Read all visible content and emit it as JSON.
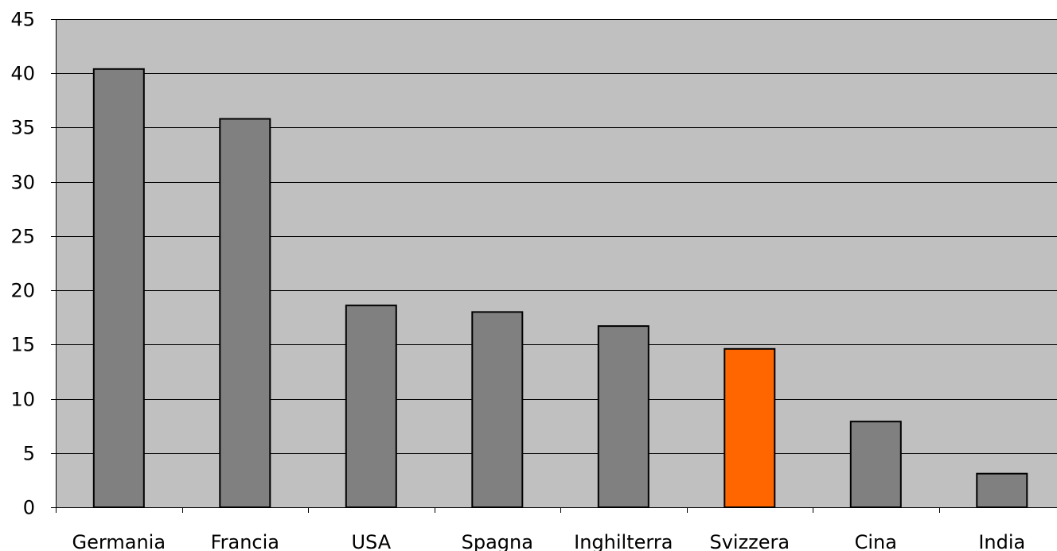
{
  "chart_data": {
    "type": "bar",
    "categories": [
      "Germania",
      "Francia",
      "USA",
      "Spagna",
      "Inghilterra",
      "Svizzera",
      "Cina",
      "India"
    ],
    "values": [
      40.4,
      35.8,
      18.6,
      18.0,
      16.7,
      14.6,
      7.9,
      3.1
    ],
    "title": "",
    "xlabel": "",
    "ylabel": "",
    "ylim": [
      0,
      45
    ],
    "yticks": [
      0,
      5,
      10,
      15,
      20,
      25,
      30,
      35,
      40,
      45
    ],
    "grid": true,
    "legend": "none",
    "colors": {
      "plot_background": "#c0c0c0",
      "bar": "#808080",
      "highlight_bar": "#ff6600",
      "highlight_category": "Svizzera",
      "bar_outline": "#000000",
      "gridline": "#000000"
    }
  }
}
